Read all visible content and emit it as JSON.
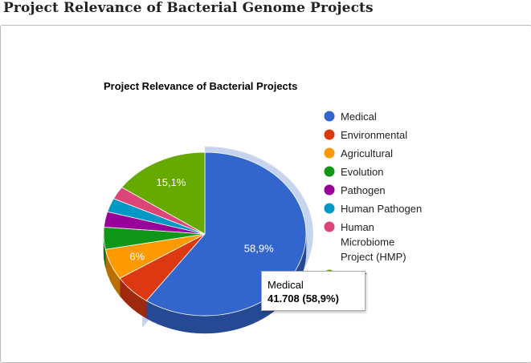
{
  "page": {
    "title": "Project Relevance of Bacterial Genome Projects"
  },
  "chart_data": {
    "type": "pie",
    "title": "Project Relevance of Bacterial Projects",
    "legend_position": "right",
    "slices": [
      {
        "name": "Medical",
        "value": 58.9,
        "color": "#3366cc",
        "label": "58,9%"
      },
      {
        "name": "Environmental",
        "value": 6.0,
        "color": "#dc3912",
        "label": ""
      },
      {
        "name": "Agricultural",
        "value": 6.0,
        "color": "#ff9900",
        "label": "6%"
      },
      {
        "name": "Evolution",
        "value": 4.3,
        "color": "#109618",
        "label": ""
      },
      {
        "name": "Pathogen",
        "value": 3.0,
        "color": "#990099",
        "label": ""
      },
      {
        "name": "Human Pathogen",
        "value": 2.7,
        "color": "#0099c6",
        "label": ""
      },
      {
        "name": "Human Microbiome Project (HMP)",
        "value": 2.5,
        "color": "#dd4477",
        "label": ""
      },
      {
        "name": "Other",
        "value": 15.1,
        "color": "#66aa00",
        "label": "15,1%"
      }
    ],
    "legend": [
      {
        "lines": [
          "Medical"
        ],
        "color": "#3366cc"
      },
      {
        "lines": [
          "Environmental"
        ],
        "color": "#dc3912"
      },
      {
        "lines": [
          "Agricultural"
        ],
        "color": "#ff9900"
      },
      {
        "lines": [
          "Evolution"
        ],
        "color": "#109618"
      },
      {
        "lines": [
          "Pathogen"
        ],
        "color": "#990099"
      },
      {
        "lines": [
          "Human Pathogen"
        ],
        "color": "#0099c6"
      },
      {
        "lines": [
          "Human",
          "Microbiome",
          "Project (HMP)"
        ],
        "color": "#dd4477"
      },
      {
        "lines": [
          "Other"
        ],
        "color": "#66aa00"
      }
    ]
  },
  "tooltip": {
    "name": "Medical",
    "value": "41.708 (58,9%)"
  }
}
